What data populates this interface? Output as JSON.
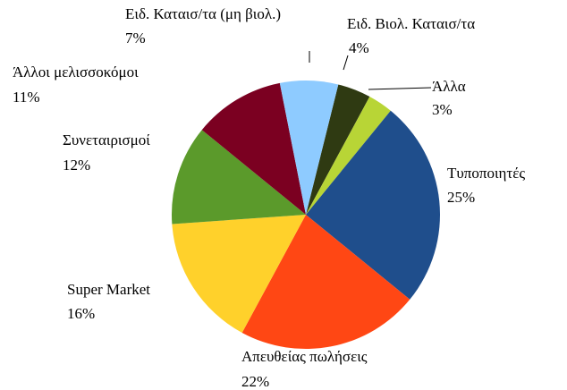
{
  "chart_data": {
    "type": "pie",
    "categories": [
      "Ειδ. Βιολ. Καταισ/τα",
      "Άλλα",
      "Τυποποιητές",
      "Απευθείας πωλήσεις",
      "Super Market",
      "Συνεταιρισμοί",
      "Άλλοι μελισσοκόμοι",
      "Ειδ. Καταισ/τα (μη βιολ.)"
    ],
    "values": [
      4,
      3,
      25,
      22,
      16,
      12,
      11,
      7
    ],
    "value_labels": [
      "4%",
      "3%",
      "25%",
      "22%",
      "16%",
      "12%",
      "11%",
      "7%"
    ],
    "colors": [
      "#2f3a12",
      "#b8d536",
      "#1f4e8c",
      "#ff4714",
      "#ffd12b",
      "#5b9a2b",
      "#7b0021",
      "#8ecbff"
    ]
  }
}
